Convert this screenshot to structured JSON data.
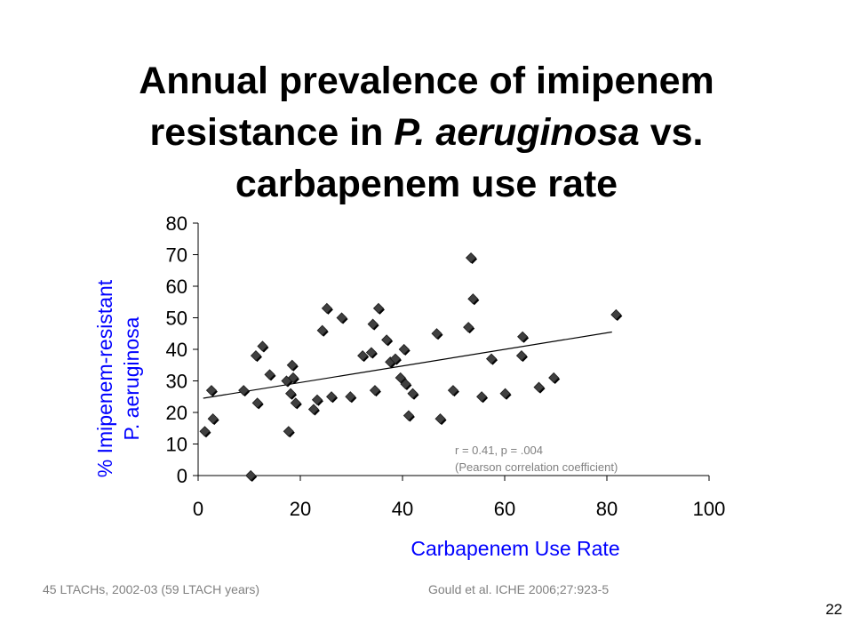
{
  "slide": {
    "title_line1": "Annual prevalence of imipenem",
    "title_line2_pre": "resistance in ",
    "title_line2_italic": "P. aeruginosa",
    "title_line2_post": " vs.",
    "title_line3": "carbapenem use rate",
    "footnote_left": "45 LTACHs, 2002-03 (59 LTACH years)",
    "footnote_right": "Gould et al. ICHE 2006;27:923-5",
    "slide_number": "22"
  },
  "chart_data": {
    "type": "scatter",
    "xlabel": "Carbapenem Use Rate",
    "ylabel_line1": "% Imipenem-resistant",
    "ylabel_line2": "P. aeruginosa",
    "xlim": [
      0,
      100
    ],
    "ylim": [
      0,
      80
    ],
    "xticks": [
      0,
      20,
      40,
      60,
      80,
      100
    ],
    "yticks": [
      0,
      10,
      20,
      30,
      40,
      50,
      60,
      70,
      80
    ],
    "grid": false,
    "marker": "diamond",
    "marker_color": "#404040",
    "annotation_line1": "r = 0.41, p = .004",
    "annotation_line2": "(Pearson correlation coefficient)",
    "trendline": {
      "x": [
        1,
        81
      ],
      "y": [
        24.5,
        45.5
      ]
    },
    "points": [
      [
        1.3,
        14
      ],
      [
        2.6,
        27
      ],
      [
        2.9,
        18
      ],
      [
        8.9,
        27
      ],
      [
        10.3,
        0
      ],
      [
        11.3,
        38
      ],
      [
        11.6,
        23
      ],
      [
        12.6,
        41
      ],
      [
        14,
        32
      ],
      [
        17.3,
        30
      ],
      [
        17.7,
        14
      ],
      [
        18.1,
        26
      ],
      [
        18.4,
        35
      ],
      [
        18.6,
        31
      ],
      [
        19.1,
        23
      ],
      [
        22.6,
        21
      ],
      [
        23.3,
        24
      ],
      [
        24.3,
        46
      ],
      [
        25.2,
        53
      ],
      [
        26.1,
        25
      ],
      [
        28.1,
        50
      ],
      [
        29.8,
        25
      ],
      [
        32.2,
        38
      ],
      [
        33.9,
        39
      ],
      [
        34.2,
        48
      ],
      [
        34.6,
        27
      ],
      [
        35.3,
        53
      ],
      [
        36.9,
        43
      ],
      [
        37.6,
        36
      ],
      [
        38.6,
        37
      ],
      [
        39.6,
        31
      ],
      [
        40.3,
        40
      ],
      [
        40.6,
        29
      ],
      [
        41.2,
        19
      ],
      [
        42,
        26
      ],
      [
        46.7,
        45
      ],
      [
        47.4,
        18
      ],
      [
        49.9,
        27
      ],
      [
        52.9,
        47
      ],
      [
        53.4,
        69
      ],
      [
        53.8,
        56
      ],
      [
        55.5,
        25
      ],
      [
        57.4,
        37
      ],
      [
        60.1,
        26
      ],
      [
        63.3,
        38
      ],
      [
        63.5,
        44
      ],
      [
        66.7,
        28
      ],
      [
        69.6,
        31
      ],
      [
        81.8,
        51
      ]
    ]
  }
}
